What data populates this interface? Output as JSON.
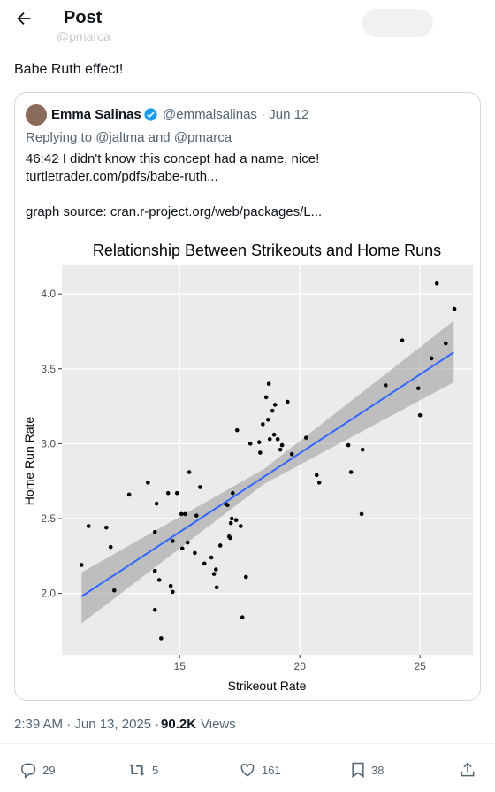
{
  "header": {
    "title": "Post",
    "handle": "@pmarca"
  },
  "post": {
    "text": "Babe Ruth effect!"
  },
  "quote": {
    "name": "Emma Salinas",
    "meta": "@emmalsalinas · Jun 12",
    "replying": "Replying to @jaltma and @pmarca",
    "line1": "46:42 I didn't know this concept had a name, nice!",
    "link1": "turtletrader.com/pdfs/babe-ruth...",
    "line2": "graph source: cran.r-project.org/web/packages/L..."
  },
  "chart_data": {
    "type": "scatter",
    "title": "Relationship Between Strikeouts and Home Runs",
    "x_label": "Strikeout Rate",
    "y_label": "Home Run Rate",
    "color": "#000000",
    "x": [
      10.92,
      11.21,
      11.95,
      12.13,
      12.28,
      12.9,
      13.68,
      13.97,
      14.04,
      13.97,
      13.97,
      14.15,
      14.23,
      14.52,
      14.63,
      14.71,
      14.71,
      14.89,
      15.07,
      15.22,
      15.11,
      15.33,
      15.4,
      15.63,
      15.7,
      15.85,
      16.03,
      16.32,
      16.43,
      16.51,
      16.54,
      16.69,
      16.91,
      16.99,
      17.1,
      17.13,
      17.06,
      17.21,
      17.17,
      17.35,
      17.39,
      17.54,
      17.61,
      17.76,
      17.94,
      18.31,
      18.35,
      18.46,
      18.6,
      18.68,
      18.71,
      18.75,
      18.86,
      18.97,
      18.93,
      19.08,
      19.19,
      19.26,
      19.49,
      19.67,
      20.26,
      20.7,
      20.81,
      22.02,
      22.13,
      22.61,
      22.57,
      23.57,
      24.26,
      24.93,
      25.0,
      25.48,
      25.7,
      26.07,
      26.43
    ],
    "y": [
      2.19,
      2.45,
      2.44,
      2.31,
      2.02,
      2.66,
      2.74,
      2.41,
      2.6,
      2.15,
      1.89,
      2.09,
      1.7,
      2.67,
      2.05,
      2.01,
      2.35,
      2.67,
      2.53,
      2.53,
      2.3,
      2.34,
      2.81,
      2.27,
      2.52,
      2.71,
      2.2,
      2.24,
      2.13,
      2.16,
      2.04,
      2.32,
      2.6,
      2.59,
      2.37,
      2.47,
      2.38,
      2.67,
      2.5,
      2.49,
      3.09,
      2.45,
      1.84,
      2.11,
      3.0,
      3.01,
      2.94,
      3.13,
      3.31,
      3.16,
      3.4,
      3.03,
      3.22,
      3.26,
      3.06,
      3.03,
      2.96,
      2.99,
      3.28,
      2.93,
      3.04,
      2.79,
      2.74,
      2.99,
      2.81,
      2.96,
      2.53,
      3.39,
      3.69,
      3.37,
      3.19,
      3.57,
      4.07,
      3.67,
      3.9
    ],
    "trend": {
      "color": "#3366ff",
      "x": [
        10.92,
        26.4
      ],
      "y": [
        1.98,
        3.61
      ]
    },
    "band": {
      "color": "#999999",
      "x": [
        10.92,
        18.5,
        26.4
      ],
      "lower": [
        1.8,
        2.73,
        3.41
      ],
      "upper": [
        2.14,
        2.83,
        3.82
      ]
    },
    "xlim": [
      10.1,
      27.2
    ],
    "ylim": [
      1.59,
      4.19
    ],
    "xticks": [
      15,
      20,
      25
    ],
    "yticks": [
      {
        "value": 2,
        "label": "2.0"
      },
      2.5,
      {
        "value": 3,
        "label": "3.0"
      },
      3.5,
      {
        "value": 4,
        "label": "4.0"
      }
    ],
    "grid": true
  },
  "footer": {
    "date": "2:39 AM · Jun 13, 2025 ·",
    "views": "90.2K",
    "views_label": "Views"
  },
  "actions": {
    "replies": "29",
    "reposts": "5",
    "likes": "161",
    "bookmarks": "38"
  }
}
